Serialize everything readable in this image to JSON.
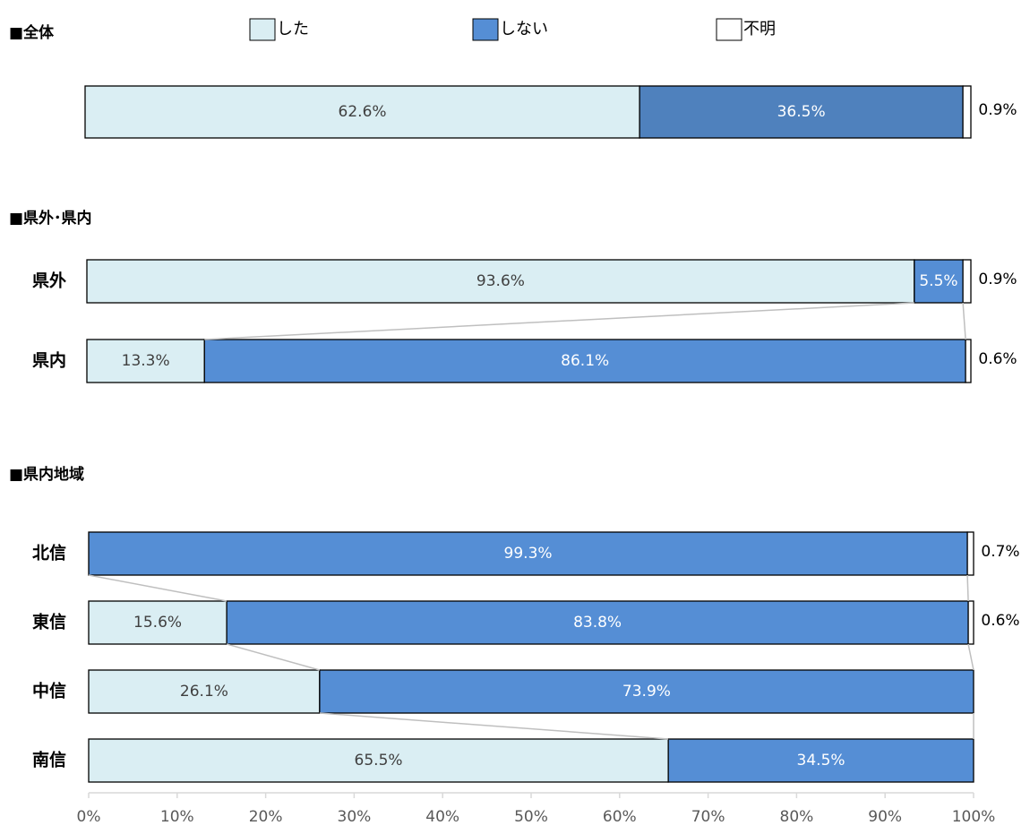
{
  "colors": {
    "shita": "#daeef3",
    "shinai": "#558ed5",
    "shinai_overall": "#4f81bd",
    "fumei": "#ffffff",
    "connector": "#bfbfbf",
    "axis": "#d9d9d9"
  },
  "chart_data": {
    "type": "bar",
    "orientation": "horizontal",
    "stacked": true,
    "xlim": [
      0,
      100
    ],
    "x_ticks": [
      "0%",
      "10%",
      "20%",
      "30%",
      "40%",
      "50%",
      "60%",
      "70%",
      "80%",
      "90%",
      "100%"
    ],
    "legend": [
      {
        "key": "shita",
        "label": "した"
      },
      {
        "key": "shinai",
        "label": "しない"
      },
      {
        "key": "fumei",
        "label": "不明"
      }
    ],
    "sections": [
      {
        "title": "■全体",
        "rows": [
          {
            "label": "",
            "values": {
              "shita": 62.6,
              "shinai": 36.5,
              "fumei": 0.9
            },
            "labels": {
              "shita": "62.6%",
              "shinai": "36.5%",
              "fumei": "0.9%"
            }
          }
        ]
      },
      {
        "title": "■県外･県内",
        "rows": [
          {
            "label": "県外",
            "values": {
              "shita": 93.6,
              "shinai": 5.5,
              "fumei": 0.9
            },
            "labels": {
              "shita": "93.6%",
              "shinai": "5.5%",
              "fumei": "0.9%"
            }
          },
          {
            "label": "県内",
            "values": {
              "shita": 13.3,
              "shinai": 86.1,
              "fumei": 0.6
            },
            "labels": {
              "shita": "13.3%",
              "shinai": "86.1%",
              "fumei": "0.6%"
            }
          }
        ]
      },
      {
        "title": "■県内地域",
        "rows": [
          {
            "label": "北信",
            "values": {
              "shita": 0,
              "shinai": 99.3,
              "fumei": 0.7
            },
            "labels": {
              "shita": "",
              "shinai": "99.3%",
              "fumei": "0.7%"
            }
          },
          {
            "label": "東信",
            "values": {
              "shita": 15.6,
              "shinai": 83.8,
              "fumei": 0.6
            },
            "labels": {
              "shita": "15.6%",
              "shinai": "83.8%",
              "fumei": "0.6%"
            }
          },
          {
            "label": "中信",
            "values": {
              "shita": 26.1,
              "shinai": 73.9,
              "fumei": 0
            },
            "labels": {
              "shita": "26.1%",
              "shinai": "73.9%",
              "fumei": ""
            }
          },
          {
            "label": "南信",
            "values": {
              "shita": 65.5,
              "shinai": 34.5,
              "fumei": 0
            },
            "labels": {
              "shita": "65.5%",
              "shinai": "34.5%",
              "fumei": ""
            }
          }
        ]
      }
    ]
  }
}
